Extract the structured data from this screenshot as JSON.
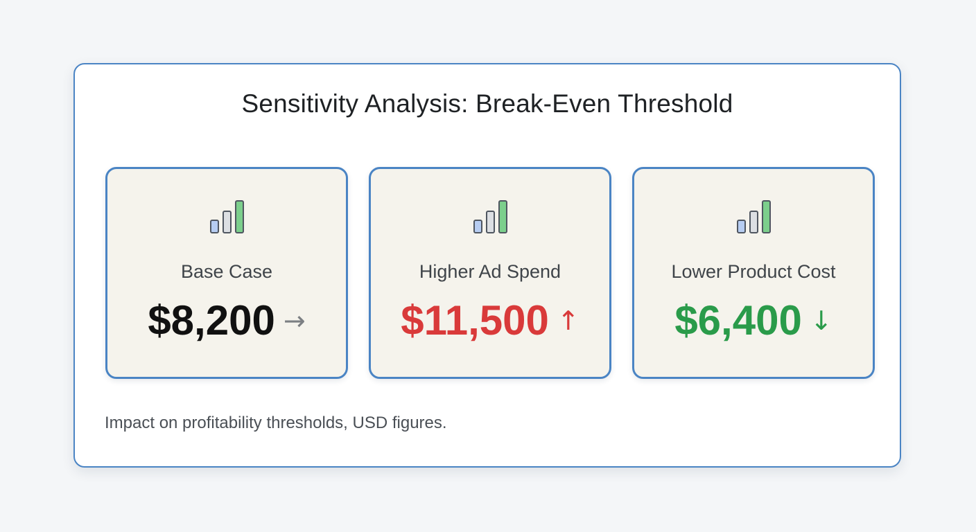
{
  "title": "Sensitivity Analysis: Break-Even Threshold",
  "cards": [
    {
      "label": "Base Case",
      "value": "$8,200",
      "arrow": "→",
      "value_color": "#111111",
      "arrow_color": "#7c7f83",
      "icon": "bar-chart-icon"
    },
    {
      "label": "Higher Ad Spend",
      "value": "$11,500",
      "arrow": "↑",
      "value_color": "#d93a3a",
      "arrow_color": "#d93a3a",
      "icon": "bar-chart-icon"
    },
    {
      "label": "Lower Product Cost",
      "value": "$6,400",
      "arrow": "↓",
      "value_color": "#2a9b4a",
      "arrow_color": "#2a9b4a",
      "icon": "bar-chart-icon"
    }
  ],
  "footnote": "Impact on profitability thresholds, USD figures.",
  "colors": {
    "accent_border": "#4a84c4",
    "card_background": "#f5f3ec",
    "icon_bar_blue": "#b7cdf2",
    "icon_bar_gray": "#dcdfe3",
    "icon_bar_green": "#7ccf8c"
  }
}
